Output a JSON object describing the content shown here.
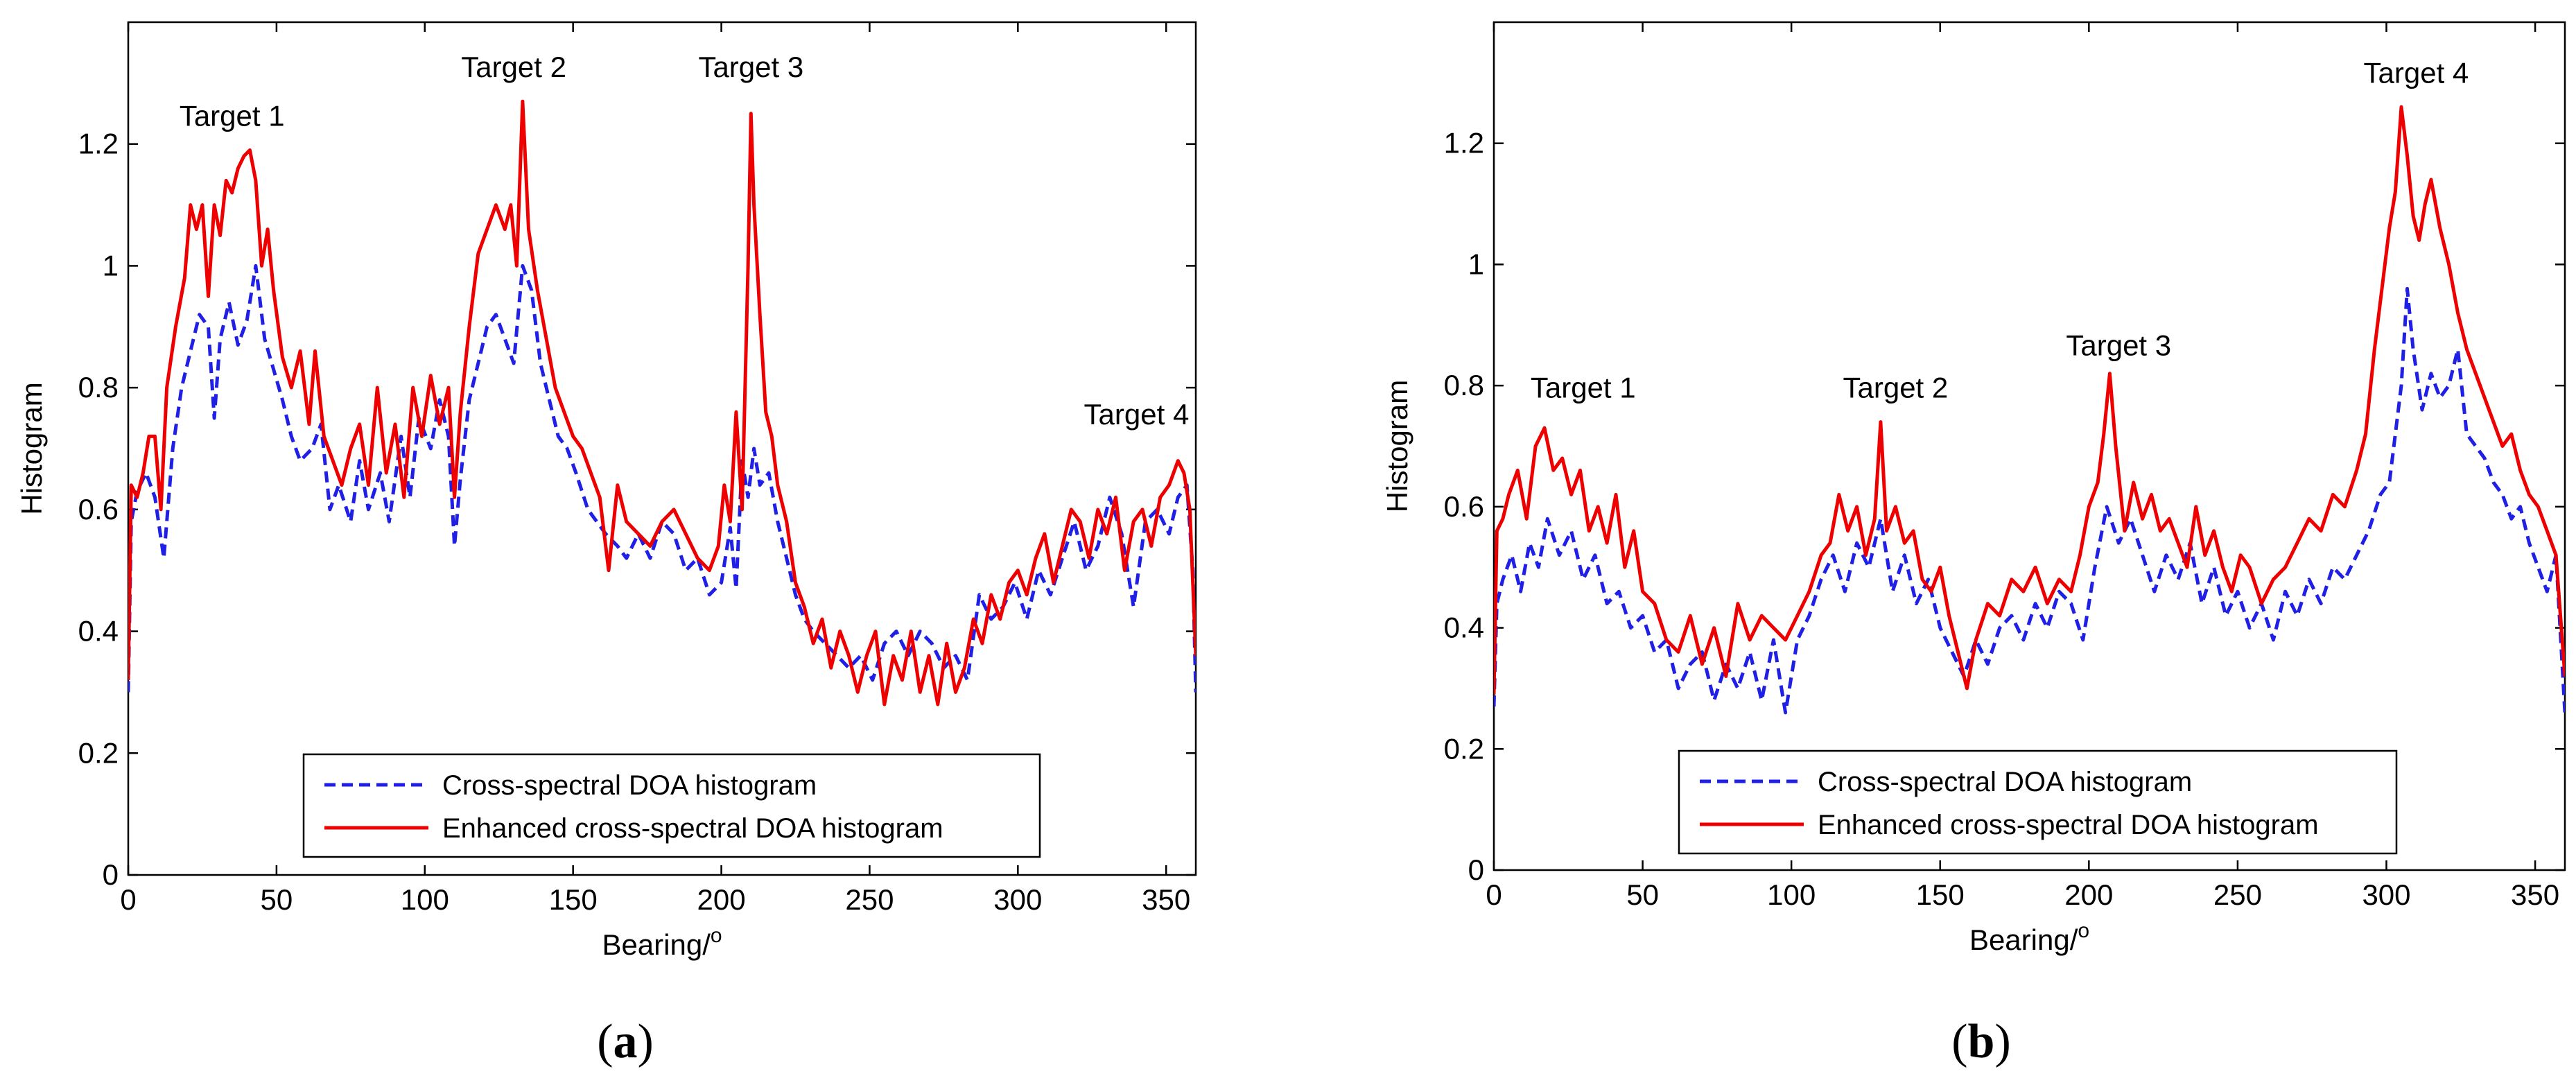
{
  "figure": {
    "panels": [
      "(a)",
      "(b)"
    ]
  },
  "colors": {
    "cross": "#1f1fe6",
    "enhanced": "#ee0000",
    "axis": "#000000"
  },
  "chart_data": [
    {
      "type": "line",
      "panel_label": "(a)",
      "title": "",
      "xlabel": "Bearing/",
      "xlabel_superscript": "o",
      "ylabel": "Histogram",
      "xlim": [
        0,
        360
      ],
      "ylim": [
        0,
        1.4
      ],
      "xticks": [
        0,
        50,
        100,
        150,
        200,
        250,
        300,
        350
      ],
      "yticks": [
        0,
        0.2,
        0.4,
        0.6,
        0.8,
        1,
        1.2
      ],
      "ytick_labels": [
        "0",
        "0.2",
        "0.4",
        "0.6",
        "0.8",
        "1",
        "1.2"
      ],
      "grid": false,
      "legend_position": "bottom-center",
      "annotations": [
        {
          "text": "Target 1",
          "x": 35,
          "y": 1.23
        },
        {
          "text": "Target 2",
          "x": 130,
          "y": 1.31
        },
        {
          "text": "Target 3",
          "x": 210,
          "y": 1.31
        },
        {
          "text": "Target 4",
          "x": 340,
          "y": 0.74
        }
      ],
      "series": [
        {
          "name": "Cross-spectral DOA histogram",
          "style": "dashed",
          "color": "blue",
          "x": [
            0,
            1,
            3,
            6,
            9,
            12,
            15,
            18,
            21,
            24,
            27,
            29,
            31,
            34,
            37,
            40,
            43,
            46,
            49,
            52,
            55,
            58,
            62,
            65,
            68,
            71,
            75,
            78,
            81,
            85,
            88,
            92,
            95,
            98,
            102,
            105,
            108,
            110,
            112,
            115,
            118,
            121,
            124,
            127,
            130,
            133,
            136,
            139,
            142,
            145,
            148,
            151,
            155,
            158,
            161,
            165,
            168,
            172,
            176,
            180,
            184,
            188,
            192,
            196,
            200,
            203,
            205,
            207,
            209,
            211,
            213,
            216,
            219,
            222,
            225,
            228,
            231,
            235,
            239,
            243,
            247,
            251,
            255,
            259,
            263,
            267,
            271,
            275,
            279,
            283,
            287,
            291,
            295,
            299,
            303,
            307,
            311,
            315,
            319,
            323,
            327,
            331,
            335,
            339,
            343,
            347,
            351,
            354,
            357,
            359,
            360
          ],
          "values": [
            0.3,
            0.58,
            0.63,
            0.66,
            0.62,
            0.52,
            0.7,
            0.8,
            0.86,
            0.92,
            0.9,
            0.75,
            0.88,
            0.94,
            0.87,
            0.91,
            1.0,
            0.88,
            0.83,
            0.78,
            0.72,
            0.68,
            0.7,
            0.74,
            0.6,
            0.64,
            0.58,
            0.68,
            0.6,
            0.66,
            0.58,
            0.72,
            0.62,
            0.75,
            0.7,
            0.78,
            0.72,
            0.54,
            0.65,
            0.78,
            0.84,
            0.9,
            0.92,
            0.88,
            0.84,
            1.0,
            0.96,
            0.84,
            0.78,
            0.72,
            0.7,
            0.66,
            0.6,
            0.58,
            0.56,
            0.54,
            0.52,
            0.56,
            0.52,
            0.58,
            0.56,
            0.5,
            0.52,
            0.46,
            0.48,
            0.57,
            0.47,
            0.68,
            0.62,
            0.7,
            0.64,
            0.66,
            0.58,
            0.52,
            0.46,
            0.42,
            0.4,
            0.38,
            0.36,
            0.34,
            0.36,
            0.32,
            0.38,
            0.4,
            0.36,
            0.4,
            0.38,
            0.34,
            0.36,
            0.32,
            0.46,
            0.42,
            0.44,
            0.48,
            0.42,
            0.5,
            0.46,
            0.52,
            0.58,
            0.5,
            0.54,
            0.62,
            0.56,
            0.44,
            0.58,
            0.6,
            0.56,
            0.62,
            0.64,
            0.5,
            0.3
          ]
        },
        {
          "name": "Enhanced cross-spectral DOA histogram",
          "style": "solid",
          "color": "red",
          "x": [
            0,
            1,
            3,
            5,
            7,
            9,
            11,
            13,
            16,
            19,
            21,
            23,
            25,
            27,
            29,
            31,
            33,
            35,
            37,
            39,
            41,
            43,
            45,
            47,
            49,
            52,
            55,
            58,
            61,
            63,
            66,
            69,
            72,
            75,
            78,
            81,
            84,
            87,
            90,
            93,
            96,
            99,
            102,
            105,
            108,
            110,
            112,
            115,
            118,
            121,
            124,
            127,
            129,
            131,
            133,
            135,
            138,
            141,
            144,
            147,
            150,
            153,
            156,
            159,
            162,
            165,
            168,
            172,
            176,
            180,
            184,
            188,
            192,
            196,
            199,
            201,
            203,
            205,
            207,
            209,
            210,
            211,
            213,
            215,
            217,
            219,
            222,
            225,
            228,
            231,
            234,
            237,
            240,
            243,
            246,
            249,
            252,
            255,
            258,
            261,
            264,
            267,
            270,
            273,
            276,
            279,
            282,
            285,
            288,
            291,
            294,
            297,
            300,
            303,
            306,
            309,
            312,
            315,
            318,
            321,
            324,
            327,
            330,
            333,
            336,
            339,
            342,
            345,
            348,
            351,
            354,
            356,
            358,
            360
          ],
          "values": [
            0.32,
            0.64,
            0.62,
            0.66,
            0.72,
            0.72,
            0.6,
            0.8,
            0.9,
            0.98,
            1.1,
            1.06,
            1.1,
            0.95,
            1.1,
            1.05,
            1.14,
            1.12,
            1.16,
            1.18,
            1.19,
            1.14,
            1.0,
            1.06,
            0.96,
            0.85,
            0.8,
            0.86,
            0.74,
            0.86,
            0.72,
            0.68,
            0.64,
            0.7,
            0.74,
            0.64,
            0.8,
            0.66,
            0.74,
            0.62,
            0.8,
            0.72,
            0.82,
            0.74,
            0.8,
            0.62,
            0.76,
            0.9,
            1.02,
            1.06,
            1.1,
            1.06,
            1.1,
            1.0,
            1.27,
            1.06,
            0.96,
            0.88,
            0.8,
            0.76,
            0.72,
            0.7,
            0.66,
            0.62,
            0.5,
            0.64,
            0.58,
            0.56,
            0.54,
            0.58,
            0.6,
            0.56,
            0.52,
            0.5,
            0.54,
            0.64,
            0.58,
            0.76,
            0.6,
            1.0,
            1.25,
            1.1,
            0.92,
            0.76,
            0.72,
            0.64,
            0.58,
            0.48,
            0.44,
            0.38,
            0.42,
            0.34,
            0.4,
            0.36,
            0.3,
            0.36,
            0.4,
            0.28,
            0.36,
            0.32,
            0.4,
            0.3,
            0.36,
            0.28,
            0.38,
            0.3,
            0.34,
            0.42,
            0.38,
            0.46,
            0.42,
            0.48,
            0.5,
            0.46,
            0.52,
            0.56,
            0.48,
            0.54,
            0.6,
            0.58,
            0.52,
            0.6,
            0.56,
            0.62,
            0.5,
            0.58,
            0.6,
            0.54,
            0.62,
            0.64,
            0.68,
            0.66,
            0.6,
            0.36
          ]
        }
      ]
    },
    {
      "type": "line",
      "panel_label": "(b)",
      "title": "",
      "xlabel": "Bearing/",
      "xlabel_superscript": "o",
      "ylabel": "Histogram",
      "xlim": [
        0,
        360
      ],
      "ylim": [
        0,
        1.4
      ],
      "xticks": [
        0,
        50,
        100,
        150,
        200,
        250,
        300,
        350
      ],
      "yticks": [
        0,
        0.2,
        0.4,
        0.6,
        0.8,
        1,
        1.2
      ],
      "ytick_labels": [
        "0",
        "0.2",
        "0.4",
        "0.6",
        "0.8",
        "1",
        "1.2"
      ],
      "grid": false,
      "legend_position": "bottom-center",
      "annotations": [
        {
          "text": "Target 1",
          "x": 30,
          "y": 0.78
        },
        {
          "text": "Target 2",
          "x": 135,
          "y": 0.78
        },
        {
          "text": "Target 3",
          "x": 210,
          "y": 0.85
        },
        {
          "text": "Target 4",
          "x": 310,
          "y": 1.3
        }
      ],
      "series": [
        {
          "name": "Cross-spectral DOA histogram",
          "style": "dashed",
          "color": "blue",
          "x": [
            0,
            1,
            3,
            6,
            9,
            12,
            15,
            18,
            22,
            26,
            30,
            34,
            38,
            42,
            46,
            50,
            54,
            58,
            62,
            66,
            70,
            74,
            78,
            82,
            86,
            90,
            94,
            98,
            102,
            106,
            110,
            114,
            118,
            122,
            126,
            130,
            134,
            138,
            142,
            146,
            150,
            154,
            158,
            162,
            166,
            170,
            174,
            178,
            182,
            186,
            190,
            194,
            198,
            202,
            206,
            210,
            214,
            218,
            222,
            226,
            230,
            234,
            238,
            242,
            246,
            250,
            254,
            258,
            262,
            266,
            270,
            274,
            278,
            282,
            286,
            290,
            294,
            298,
            301,
            303,
            305,
            307,
            309,
            312,
            315,
            318,
            321,
            324,
            327,
            330,
            333,
            336,
            339,
            342,
            345,
            348,
            351,
            354,
            357,
            360
          ],
          "values": [
            0.27,
            0.44,
            0.48,
            0.52,
            0.46,
            0.54,
            0.5,
            0.58,
            0.52,
            0.56,
            0.48,
            0.52,
            0.44,
            0.46,
            0.4,
            0.42,
            0.36,
            0.38,
            0.3,
            0.34,
            0.36,
            0.28,
            0.34,
            0.3,
            0.36,
            0.28,
            0.38,
            0.26,
            0.38,
            0.42,
            0.48,
            0.52,
            0.46,
            0.54,
            0.5,
            0.58,
            0.46,
            0.52,
            0.44,
            0.48,
            0.4,
            0.36,
            0.32,
            0.38,
            0.34,
            0.4,
            0.42,
            0.38,
            0.44,
            0.4,
            0.46,
            0.44,
            0.38,
            0.5,
            0.6,
            0.54,
            0.58,
            0.52,
            0.46,
            0.52,
            0.48,
            0.54,
            0.44,
            0.5,
            0.42,
            0.46,
            0.4,
            0.44,
            0.38,
            0.46,
            0.42,
            0.48,
            0.44,
            0.5,
            0.48,
            0.52,
            0.56,
            0.62,
            0.64,
            0.72,
            0.8,
            0.96,
            0.86,
            0.76,
            0.82,
            0.78,
            0.8,
            0.86,
            0.72,
            0.7,
            0.68,
            0.64,
            0.62,
            0.58,
            0.6,
            0.54,
            0.5,
            0.46,
            0.52,
            0.26
          ]
        },
        {
          "name": "Enhanced cross-spectral DOA histogram",
          "style": "solid",
          "color": "red",
          "x": [
            0,
            1,
            3,
            5,
            8,
            11,
            14,
            17,
            20,
            23,
            26,
            29,
            32,
            35,
            38,
            41,
            44,
            47,
            50,
            54,
            58,
            62,
            66,
            70,
            74,
            78,
            82,
            86,
            90,
            94,
            98,
            102,
            106,
            110,
            113,
            116,
            119,
            122,
            125,
            128,
            130,
            132,
            135,
            138,
            141,
            144,
            147,
            150,
            153,
            156,
            159,
            162,
            166,
            170,
            174,
            178,
            182,
            186,
            190,
            194,
            197,
            200,
            203,
            205,
            207,
            209,
            212,
            215,
            218,
            221,
            224,
            227,
            230,
            233,
            236,
            239,
            242,
            245,
            248,
            251,
            254,
            258,
            262,
            266,
            270,
            274,
            278,
            282,
            286,
            290,
            293,
            296,
            299,
            301,
            303,
            305,
            307,
            309,
            311,
            313,
            315,
            318,
            321,
            324,
            327,
            330,
            333,
            336,
            339,
            342,
            345,
            348,
            351,
            354,
            357,
            360
          ],
          "values": [
            0.29,
            0.56,
            0.58,
            0.62,
            0.66,
            0.58,
            0.7,
            0.73,
            0.66,
            0.68,
            0.62,
            0.66,
            0.56,
            0.6,
            0.54,
            0.62,
            0.5,
            0.56,
            0.46,
            0.44,
            0.38,
            0.36,
            0.42,
            0.34,
            0.4,
            0.32,
            0.44,
            0.38,
            0.42,
            0.4,
            0.38,
            0.42,
            0.46,
            0.52,
            0.54,
            0.62,
            0.56,
            0.6,
            0.52,
            0.58,
            0.74,
            0.56,
            0.6,
            0.54,
            0.56,
            0.48,
            0.46,
            0.5,
            0.42,
            0.36,
            0.3,
            0.38,
            0.44,
            0.42,
            0.48,
            0.46,
            0.5,
            0.44,
            0.48,
            0.46,
            0.52,
            0.6,
            0.64,
            0.72,
            0.82,
            0.7,
            0.56,
            0.64,
            0.58,
            0.62,
            0.56,
            0.58,
            0.54,
            0.5,
            0.6,
            0.52,
            0.56,
            0.5,
            0.46,
            0.52,
            0.5,
            0.44,
            0.48,
            0.5,
            0.54,
            0.58,
            0.56,
            0.62,
            0.6,
            0.66,
            0.72,
            0.86,
            0.98,
            1.06,
            1.12,
            1.26,
            1.18,
            1.08,
            1.04,
            1.1,
            1.14,
            1.06,
            1.0,
            0.92,
            0.86,
            0.82,
            0.78,
            0.74,
            0.7,
            0.72,
            0.66,
            0.62,
            0.6,
            0.56,
            0.52,
            0.32
          ]
        }
      ]
    }
  ]
}
